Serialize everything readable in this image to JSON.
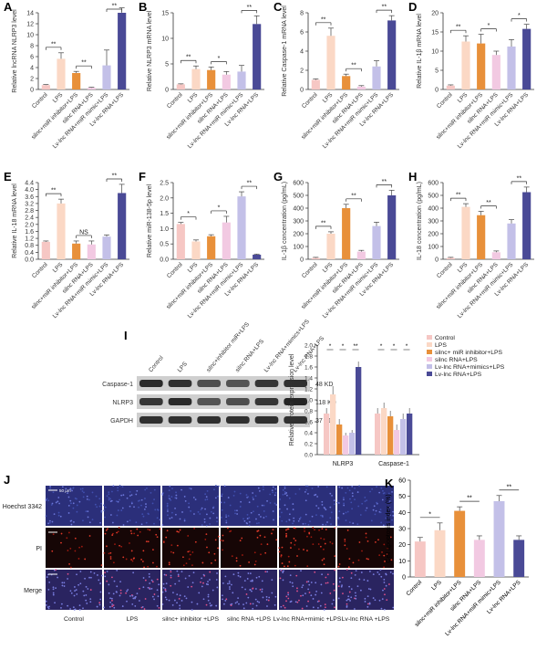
{
  "colors": {
    "Control": "#f6c7c4",
    "LPS": "#fbd8c5",
    "inhib": "#e8903a",
    "si": "#f2c9e2",
    "mimic": "#c3c0e8",
    "lv": "#4a4a96",
    "blot": "#2a2a2a",
    "fluor_blue": "#2b2f7a",
    "fluor_red": "#8a1818"
  },
  "labels5": [
    "Control",
    "LPS",
    "silnc+miR inhibitor+LPS",
    "silnc RNA+LPS",
    "Lv-lnc RNA+miR mimic+LPS",
    "Lv-lnc RNA+LPS"
  ],
  "panels": [
    {
      "letter": "A",
      "ylabel": "Relative lncRNA NLRP3 level",
      "ticks": [
        "0",
        "2",
        "4",
        "6",
        "8",
        "10",
        "12",
        "14"
      ],
      "ymax": 14,
      "values": [
        0.8,
        5.6,
        3.0,
        0.3,
        4.4,
        14.0
      ],
      "errors": [
        0.1,
        1.1,
        0.3,
        0.1,
        2.8,
        0.9
      ],
      "sig": [
        "**",
        "**",
        "**"
      ],
      "xlabels": [
        "Control",
        "LPS",
        "silnc+miR inhibitor+LPS",
        "silnc RNA+LPS",
        "Lv-lnc RNA+miR mimic+LPS",
        "Lv-lnc RNA+LPS"
      ]
    },
    {
      "letter": "B",
      "ylabel": "Relative NLRP3 mRNA level",
      "ticks": [
        "0",
        "5",
        "10",
        "15"
      ],
      "ymax": 15,
      "values": [
        1.0,
        4.0,
        3.8,
        2.9,
        3.5,
        12.8
      ],
      "errors": [
        0.1,
        0.6,
        0.6,
        0.6,
        1.2,
        1.6
      ],
      "sig": [
        "**",
        "*",
        "**"
      ],
      "xlabels": [
        "Control",
        "LPS",
        "silnc+miR inhibitor+LPS",
        "silnc RNA+LPS",
        "Lv-lnc RNA+miR mimic+LPS",
        "Lv-lnc RNA+LPS"
      ]
    },
    {
      "letter": "C",
      "ylabel": "Relative Caspase-1 mRNA level",
      "ticks": [
        "0",
        "2",
        "4",
        "6",
        "8"
      ],
      "ymax": 8,
      "values": [
        1.0,
        5.6,
        1.4,
        0.3,
        2.4,
        7.2
      ],
      "errors": [
        0.1,
        0.8,
        0.2,
        0.1,
        0.6,
        0.5
      ],
      "sig": [
        "**",
        "**",
        "**"
      ],
      "xlabels": [
        "Control",
        "LPS",
        "silnc+miR inhibitor+LPS",
        "silnc RNA+LPS",
        "Lv-lnc RNA+miR mimic+LPS",
        "Lv-lnc RNA+LPS"
      ]
    },
    {
      "letter": "D",
      "ylabel": "Relative IL-1β mRNA level",
      "ticks": [
        "0",
        "5",
        "10",
        "15",
        "20"
      ],
      "ymax": 20,
      "values": [
        1.0,
        12.5,
        12.0,
        9.0,
        11.2,
        15.8
      ],
      "errors": [
        0.2,
        1.5,
        2.4,
        1.0,
        1.8,
        1.2
      ],
      "sig": [
        "**",
        "*",
        "*"
      ],
      "xlabels": [
        "Control",
        "LPS",
        "silnc+miR inhibitor+LPS",
        "silnc RNA+LPS",
        "Lv-lnc RNA+miR mimic+LPS",
        "Lv-lnc RNA+LPS"
      ]
    },
    {
      "letter": "E",
      "ylabel": "Relative IL-18 mRNA level",
      "ticks": [
        "0.0",
        "0.4",
        "0.8",
        "1.2",
        "1.6",
        "2.0",
        "2.4",
        "2.8",
        "3.2",
        "3.6",
        "4.0",
        "4.4"
      ],
      "ymax": 4.4,
      "values": [
        1.0,
        3.2,
        0.9,
        0.85,
        1.3,
        3.8
      ],
      "errors": [
        0.05,
        0.25,
        0.15,
        0.2,
        0.1,
        0.5
      ],
      "sig": [
        "**",
        "NS",
        "**"
      ],
      "xlabels": [
        "Control",
        "LPS",
        "silnc+miR inhibitor+LPS",
        "silnc RNA+LPS",
        "Lv-lnc RNA+miR mimic+LPS",
        "Lv-lnc RNA+LPS"
      ]
    },
    {
      "letter": "F",
      "ylabel": "Relative miR-138-5p level",
      "ticks": [
        "0.0",
        "0.5",
        "1.0",
        "1.5",
        "2.0",
        "2.5"
      ],
      "ymax": 2.5,
      "values": [
        1.15,
        0.58,
        0.75,
        1.2,
        2.05,
        0.15
      ],
      "errors": [
        0.05,
        0.05,
        0.05,
        0.2,
        0.15,
        0.02
      ],
      "sig": [
        "*",
        "*",
        "**"
      ],
      "xlabels": [
        "Control",
        "LPS",
        "silnc+miR inhibitor+LPS",
        "silnc RNA+LPS",
        "Lv-lnc RNA+miR mimic+LPS",
        "Lv-lnc RNA+LPS"
      ]
    },
    {
      "letter": "G",
      "ylabel": "IL-1β concentration (pg/mL)",
      "ticks": [
        "0",
        "100",
        "200",
        "300",
        "400",
        "500",
        "600"
      ],
      "ymax": 600,
      "values": [
        10,
        200,
        400,
        60,
        260,
        500
      ],
      "errors": [
        5,
        15,
        30,
        10,
        30,
        40
      ],
      "sig": [
        "**",
        "**",
        "**"
      ],
      "xlabels": [
        "Control",
        "LPS",
        "silnc+miR inhibitor+LPS",
        "silnc RNA+LPS",
        "Lv-lnc RNA+miR mimic+LPS",
        "Lv-lnc RNA+LPS"
      ]
    },
    {
      "letter": "H",
      "ylabel": "IL-18 concentration (pg/mL)",
      "ticks": [
        "0",
        "100",
        "200",
        "300",
        "400",
        "500",
        "600"
      ],
      "ymax": 600,
      "values": [
        10,
        410,
        345,
        55,
        280,
        525
      ],
      "errors": [
        5,
        25,
        30,
        10,
        30,
        40
      ],
      "sig": [
        "**",
        "**",
        "**"
      ],
      "xlabels": [
        "Control",
        "LPS",
        "silnc+miR inhibitor+LPS",
        "silnc RNA+LPS",
        "Lv-lnc RNA+miR mimic+LPS",
        "Lv-lnc RNA+LPS"
      ]
    }
  ],
  "panel_i": {
    "letter": "I",
    "lanes": [
      "Control",
      "LPS",
      "silnc+inhibitor miR+LPS",
      "silnc RNA+LPS",
      "Lv-lnc RNA+mimics+LPS",
      "Lv-lnc RNA+LPS"
    ],
    "bands": [
      {
        "name": "Caspase-1",
        "kd": "48 KD",
        "intensity": [
          0.9,
          0.85,
          0.6,
          0.55,
          0.8,
          0.85
        ]
      },
      {
        "name": "NLRP3",
        "kd": "118 KD",
        "intensity": [
          0.8,
          0.9,
          0.55,
          0.6,
          0.8,
          0.95
        ]
      },
      {
        "name": "GAPDH",
        "kd": "37 KD",
        "intensity": [
          0.85,
          0.85,
          0.85,
          0.85,
          0.85,
          0.85
        ]
      }
    ]
  },
  "chart_data": [
    {
      "type": "bar",
      "title": "",
      "ylabel": "Relative protein expression level",
      "ylim": [
        0,
        2.0
      ],
      "ticks": [
        "0.0",
        "0.2",
        "0.4",
        "0.6",
        "0.8",
        "1.0",
        "1.2",
        "1.4",
        "1.6",
        "1.8",
        "2.0"
      ],
      "categories": [
        "NLRP3",
        "Caspase-1"
      ],
      "series": [
        {
          "name": "Control",
          "values": [
            0.75,
            0.75
          ],
          "errors": [
            0.1,
            0.1
          ]
        },
        {
          "name": "LPS",
          "values": [
            1.1,
            0.85
          ],
          "errors": [
            0.15,
            0.1
          ]
        },
        {
          "name": "silnc+ miR inhibitor+LPS",
          "values": [
            0.55,
            0.7
          ],
          "errors": [
            0.1,
            0.1
          ]
        },
        {
          "name": "silnc RNA+LPS",
          "values": [
            0.35,
            0.45
          ],
          "errors": [
            0.05,
            0.1
          ]
        },
        {
          "name": "Lv-lnc RNA+mimics+LPS",
          "values": [
            0.4,
            0.65
          ],
          "errors": [
            0.05,
            0.1
          ]
        },
        {
          "name": "Lv-lnc RNA+LPS",
          "values": [
            1.6,
            0.75
          ],
          "errors": [
            0.1,
            0.1
          ]
        }
      ],
      "sig": [
        [
          "*",
          "*",
          "**"
        ],
        [
          "*",
          "*",
          "*"
        ]
      ]
    },
    {
      "type": "bar",
      "title": "",
      "ylabel": "Cell apoptosis index (%)",
      "ylim": [
        0,
        60
      ],
      "ticks": [
        "0",
        "10",
        "20",
        "30",
        "40",
        "50",
        "60"
      ],
      "categories": [
        "Control",
        "LPS",
        "silnc+miR inhibitor+LPS",
        "silnc RNA+LPS",
        "Lv-lnc RNA+miR mimic+LPS",
        "Lv-lnc RNA+LPS"
      ],
      "values": [
        22,
        29,
        41,
        23,
        47,
        23
      ],
      "errors": [
        2.5,
        4.5,
        2.5,
        2.5,
        3.5,
        2.5
      ],
      "sig": [
        "*",
        "**",
        "**"
      ]
    }
  ],
  "panel_j": {
    "letter": "J",
    "rows": [
      "Hoechst 3342",
      "PI",
      "Merge"
    ],
    "cols": [
      "Control",
      "LPS",
      "silnc+ inhibitor +LPS",
      "silnc RNA +LPS",
      "Lv-lnc RNA+mimic +LPS",
      "Lv-lnc RNA +LPS"
    ],
    "red_density": [
      0.3,
      0.8,
      0.6,
      0.5,
      0.9,
      0.5
    ],
    "scale": "50 µm"
  },
  "panel_k_letter": "K"
}
